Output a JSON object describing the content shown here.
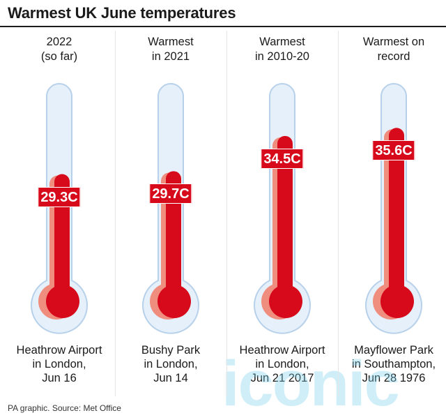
{
  "title": "Warmest UK June temperatures",
  "source": "PA graphic. Source: Met Office",
  "watermark": "iconic",
  "colors": {
    "mercury": "#d60a1a",
    "mercury_shadow": "#ef8d7f",
    "tube_fill": "#e6f0fa",
    "tube_stroke": "#b7d1ea"
  },
  "chart_data": {
    "type": "bar",
    "categories": [
      "2022\n(so far)",
      "Warmest\nin 2021",
      "Warmest\nin 2010-20",
      "Warmest on\nrecord"
    ],
    "values": [
      29.3,
      29.7,
      34.5,
      35.6
    ],
    "unit": "C",
    "value_labels": [
      "29.3C",
      "29.7C",
      "34.5C",
      "35.6C"
    ],
    "locations": [
      "Heathrow Airport\nin London,\nJun 16",
      "Bushy Park\nin London,\nJun 14",
      "Heathrow Airport\nin London,\nJun 21 2017",
      "Mayflower Park\nin Southampton,\nJun 28 1976"
    ],
    "title": "Warmest UK June temperatures",
    "xlabel": "",
    "ylabel": "",
    "ylim": [
      15,
      38
    ],
    "grid": false,
    "legend": "none"
  }
}
